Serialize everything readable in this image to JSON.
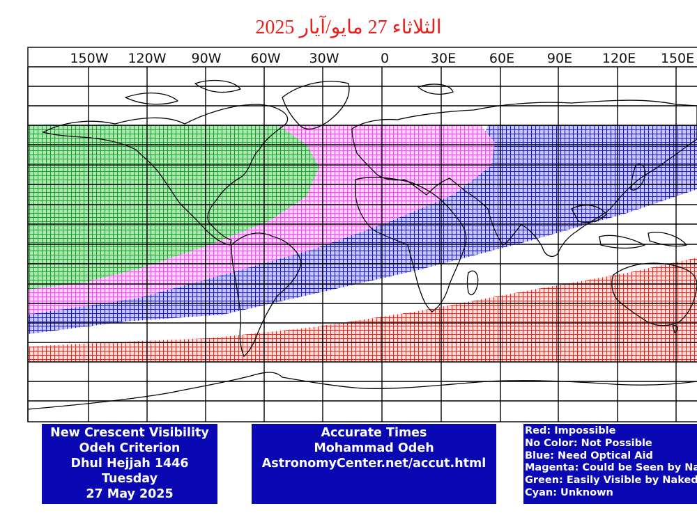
{
  "title": "الثلاثاء 27 مايو/آيار 2025",
  "longitude_labels": [
    "150W",
    "120W",
    "90W",
    "60W",
    "30W",
    "0",
    "30E",
    "60E",
    "90E",
    "120E",
    "150E"
  ],
  "colors": {
    "impossible": "#e0281c",
    "optical_aid": "#1a14c8",
    "naked_eye_possible": "#f24cf2",
    "easily_visible": "#18a02a",
    "unknown": "#20c8e0",
    "box": "#0a08b3",
    "title": "#e8201c"
  },
  "info_box": {
    "lines": [
      "New Crescent Visibility",
      "Odeh Criterion",
      "Dhul Hejjah 1446",
      "Tuesday",
      "27 May 2025"
    ]
  },
  "credit_box": {
    "lines": [
      "Accurate Times",
      "Mohammad Odeh",
      "AstronomyCenter.net/accut.html"
    ]
  },
  "legend": {
    "items": [
      "Red: Impossible",
      "No Color: Not Possible",
      "Blue: Need Optical Aid",
      "Magenta: Could be Seen by Naked Eye",
      "Green: Easily Visible by Naked Eye",
      "Cyan: Unknown"
    ]
  }
}
